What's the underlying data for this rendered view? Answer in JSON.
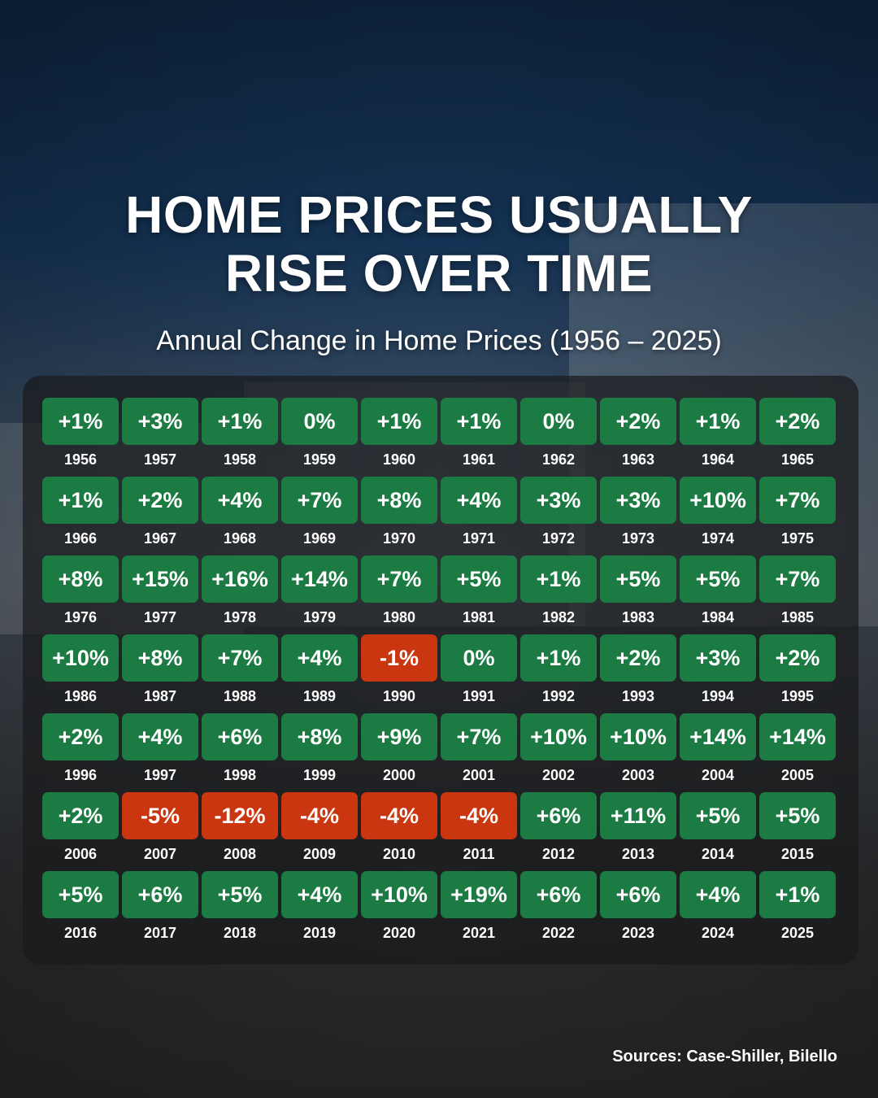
{
  "title_line1": "HOME PRICES USUALLY",
  "title_line2": "RISE OVER TIME",
  "subtitle": "Annual Change in Home Prices (1956 – 2025)",
  "source": "Sources: Case-Shiller, Bilello",
  "colors": {
    "positive": "#1c7a43",
    "negative": "#c9360f"
  },
  "chart_data": {
    "type": "table",
    "title": "Annual Change in Home Prices (1956 – 2025)",
    "x": [
      "1956",
      "1957",
      "1958",
      "1959",
      "1960",
      "1961",
      "1962",
      "1963",
      "1964",
      "1965",
      "1966",
      "1967",
      "1968",
      "1969",
      "1970",
      "1971",
      "1972",
      "1973",
      "1974",
      "1975",
      "1976",
      "1977",
      "1978",
      "1979",
      "1980",
      "1981",
      "1982",
      "1983",
      "1984",
      "1985",
      "1986",
      "1987",
      "1988",
      "1989",
      "1990",
      "1991",
      "1992",
      "1993",
      "1994",
      "1995",
      "1996",
      "1997",
      "1998",
      "1999",
      "2000",
      "2001",
      "2002",
      "2003",
      "2004",
      "2005",
      "2006",
      "2007",
      "2008",
      "2009",
      "2010",
      "2011",
      "2012",
      "2013",
      "2014",
      "2015",
      "2016",
      "2017",
      "2018",
      "2019",
      "2020",
      "2021",
      "2022",
      "2023",
      "2024",
      "2025"
    ],
    "labels": [
      "+1%",
      "+3%",
      "+1%",
      "0%",
      "+1%",
      "+1%",
      "0%",
      "+2%",
      "+1%",
      "+2%",
      "+1%",
      "+2%",
      "+4%",
      "+7%",
      "+8%",
      "+4%",
      "+3%",
      "+3%",
      "+10%",
      "+7%",
      "+8%",
      "+15%",
      "+16%",
      "+14%",
      "+7%",
      "+5%",
      "+1%",
      "+5%",
      "+5%",
      "+7%",
      "+10%",
      "+8%",
      "+7%",
      "+4%",
      "-1%",
      "0%",
      "+1%",
      "+2%",
      "+3%",
      "+2%",
      "+2%",
      "+4%",
      "+6%",
      "+8%",
      "+9%",
      "+7%",
      "+10%",
      "+10%",
      "+14%",
      "+14%",
      "+2%",
      "-5%",
      "-12%",
      "-4%",
      "-4%",
      "-4%",
      "+6%",
      "+11%",
      "+5%",
      "+5%",
      "+5%",
      "+6%",
      "+5%",
      "+4%",
      "+10%",
      "+19%",
      "+6%",
      "+6%",
      "+4%",
      "+1%"
    ],
    "values": [
      1,
      3,
      1,
      0,
      1,
      1,
      0,
      2,
      1,
      2,
      1,
      2,
      4,
      7,
      8,
      4,
      3,
      3,
      10,
      7,
      8,
      15,
      16,
      14,
      7,
      5,
      1,
      5,
      5,
      7,
      10,
      8,
      7,
      4,
      -1,
      0,
      1,
      2,
      3,
      2,
      2,
      4,
      6,
      8,
      9,
      7,
      10,
      10,
      14,
      14,
      2,
      -5,
      -12,
      -4,
      -4,
      -4,
      6,
      11,
      5,
      5,
      5,
      6,
      5,
      4,
      10,
      19,
      6,
      6,
      4,
      1
    ]
  }
}
